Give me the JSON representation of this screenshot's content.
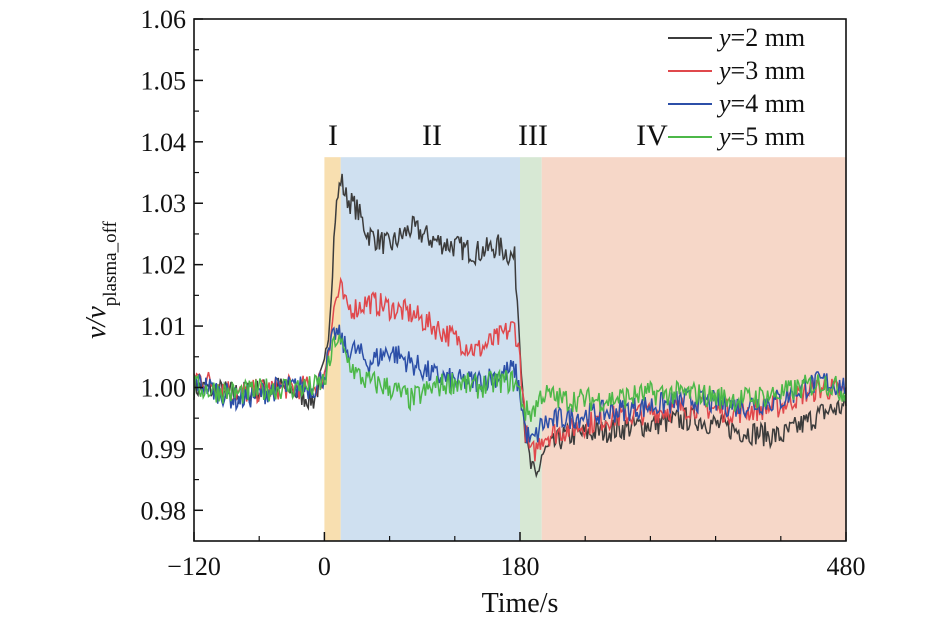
{
  "chart_data": {
    "type": "line",
    "xlabel": "Time/s",
    "ylabel": {
      "main": "v/v",
      "subscript": "plasma_off"
    },
    "xlim": [
      -120,
      480
    ],
    "ylim": [
      0.975,
      1.06
    ],
    "xticks": [
      -120,
      0,
      180,
      480
    ],
    "xtick_labels": [
      "−120",
      "0",
      "180",
      "480"
    ],
    "yticks": [
      0.98,
      0.99,
      1.0,
      1.01,
      1.02,
      1.03,
      1.04,
      1.05,
      1.06
    ],
    "ytick_labels": [
      "0.98",
      "0.99",
      "1.00",
      "1.01",
      "1.02",
      "1.03",
      "1.04",
      "1.05",
      "1.06"
    ],
    "regions": [
      {
        "label": "I",
        "x0": 0,
        "x1": 15,
        "color": "#f8dfb0"
      },
      {
        "label": "II",
        "x0": 15,
        "x1": 180,
        "color": "#cfe0f0"
      },
      {
        "label": "III",
        "x0": 180,
        "x1": 200,
        "color": "#d7e8d4"
      },
      {
        "label": "IV",
        "x0": 200,
        "x1": 480,
        "color": "#f6d7c8"
      }
    ],
    "region_top": 1.0375,
    "series": [
      {
        "name": "y=2 mm",
        "var": "y",
        "suffix": "=2 mm",
        "color": "#3c3c3c",
        "x": [
          -120,
          -80,
          -40,
          -10,
          0,
          5,
          10,
          15,
          20,
          30,
          40,
          60,
          80,
          100,
          120,
          140,
          160,
          175,
          180,
          185,
          190,
          195,
          200,
          220,
          260,
          300,
          340,
          380,
          420,
          440,
          460,
          480
        ],
        "y": [
          1.0,
          0.999,
          1.0,
          0.998,
          1.003,
          1.012,
          1.028,
          1.034,
          1.031,
          1.029,
          1.025,
          1.023,
          1.026,
          1.024,
          1.023,
          1.022,
          1.023,
          1.021,
          1.008,
          0.992,
          0.987,
          0.985,
          0.989,
          0.992,
          0.993,
          0.994,
          0.995,
          0.993,
          0.992,
          0.994,
          0.996,
          0.997
        ]
      },
      {
        "name": "y=3 mm",
        "var": "y",
        "suffix": "=3 mm",
        "color": "#e0484c",
        "x": [
          -120,
          -80,
          -40,
          -10,
          0,
          5,
          10,
          15,
          20,
          30,
          40,
          60,
          80,
          100,
          120,
          140,
          160,
          175,
          180,
          185,
          190,
          195,
          200,
          220,
          260,
          300,
          340,
          380,
          420,
          440,
          460,
          480
        ],
        "y": [
          1.002,
          0.999,
          1.0,
          1.0,
          1.002,
          1.008,
          1.014,
          1.016,
          1.013,
          1.013,
          1.014,
          1.013,
          1.012,
          1.01,
          1.008,
          1.006,
          1.008,
          1.01,
          1.005,
          0.993,
          0.989,
          0.99,
          0.992,
          0.993,
          0.995,
          0.996,
          0.997,
          0.996,
          0.997,
          0.999,
          1.0,
          0.999
        ]
      },
      {
        "name": "y=4 mm",
        "var": "y",
        "suffix": "=4 mm",
        "color": "#2c4fa8",
        "x": [
          -120,
          -80,
          -40,
          -10,
          0,
          5,
          10,
          15,
          20,
          30,
          40,
          60,
          80,
          100,
          120,
          140,
          160,
          175,
          180,
          185,
          190,
          195,
          200,
          220,
          260,
          300,
          340,
          380,
          420,
          440,
          460,
          480
        ],
        "y": [
          1.001,
          0.998,
          1.0,
          1.0,
          1.002,
          1.006,
          1.009,
          1.008,
          1.006,
          1.006,
          1.004,
          1.006,
          1.004,
          1.002,
          1.001,
          1.001,
          1.002,
          1.003,
          0.999,
          0.993,
          0.991,
          0.992,
          0.994,
          0.995,
          0.996,
          0.997,
          0.998,
          0.997,
          0.998,
          1.0,
          1.001,
          1.0
        ]
      },
      {
        "name": "y=5 mm",
        "var": "y",
        "suffix": "=5 mm",
        "color": "#4cb848",
        "x": [
          -120,
          -80,
          -40,
          -10,
          0,
          5,
          10,
          15,
          20,
          30,
          40,
          60,
          80,
          100,
          120,
          140,
          160,
          175,
          180,
          185,
          190,
          195,
          200,
          220,
          260,
          300,
          340,
          380,
          420,
          440,
          460,
          480
        ],
        "y": [
          1.0,
          0.999,
          1.0,
          1.0,
          1.001,
          1.004,
          1.008,
          1.007,
          1.005,
          1.002,
          1.001,
          1.0,
          0.998,
          1.0,
          1.001,
          1.0,
          1.001,
          1.001,
          0.999,
          0.996,
          0.996,
          0.997,
          0.999,
          0.998,
          0.998,
          0.999,
          0.999,
          0.998,
          0.999,
          1.0,
          1.001,
          0.999
        ]
      }
    ]
  }
}
